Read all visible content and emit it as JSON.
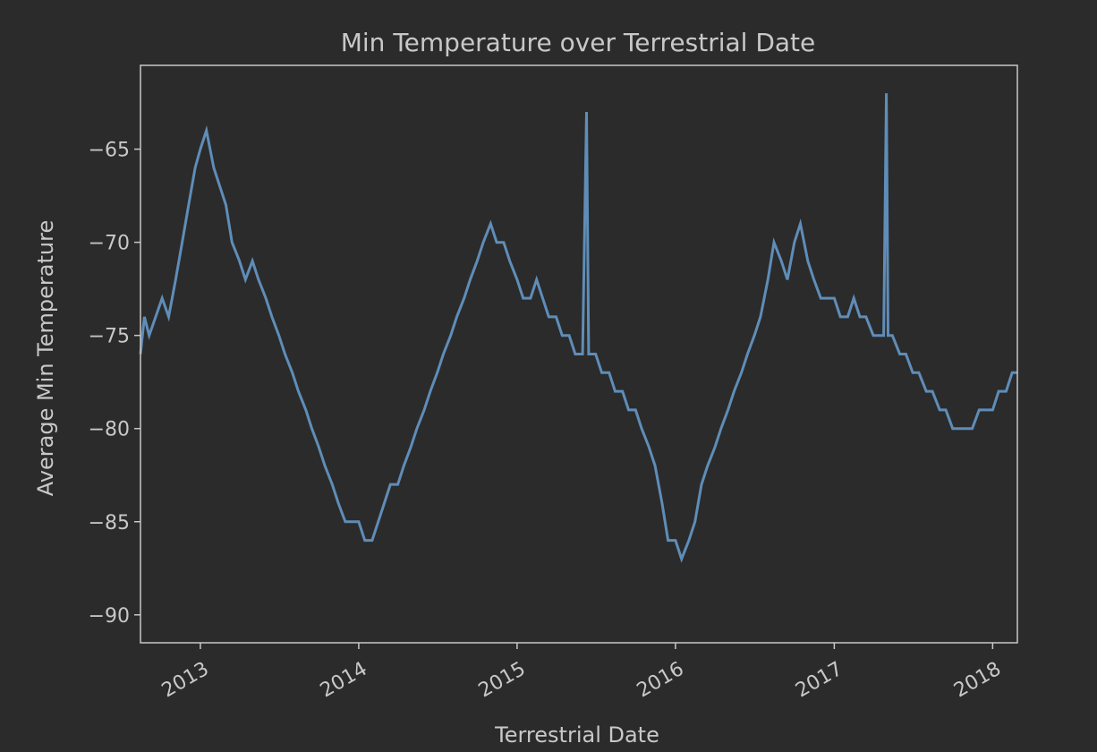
{
  "chart_data": {
    "type": "line",
    "title": "Min Temperature over Terrestrial Date",
    "xlabel": "Terrestrial Date",
    "ylabel": "Average Min Temperature",
    "x_scale": "date",
    "xlim": [
      "2012-08-16",
      "2018-02-27"
    ],
    "ylim": [
      -91.5,
      -60.5
    ],
    "x_ticks": [
      "2013-01-01",
      "2014-01-01",
      "2015-01-01",
      "2016-01-01",
      "2017-01-01",
      "2018-01-01"
    ],
    "x_tick_labels": [
      "2013",
      "2014",
      "2015",
      "2016",
      "2017",
      "2018"
    ],
    "y_ticks": [
      -65,
      -70,
      -75,
      -80,
      -85,
      -90
    ],
    "y_tick_labels": [
      "−65",
      "−70",
      "−75",
      "−80",
      "−85",
      "−90"
    ],
    "grid": false,
    "legend": "none",
    "line_color": "#5f8db8",
    "series": [
      {
        "x": [
          "2012-08-16",
          "2012-08-25",
          "2012-09-05",
          "2012-09-20",
          "2012-10-05",
          "2012-10-20",
          "2012-11-05",
          "2012-11-20",
          "2012-12-05",
          "2012-12-20",
          "2013-01-01",
          "2013-01-15",
          "2013-02-01",
          "2013-02-15",
          "2013-03-01",
          "2013-03-15",
          "2013-04-01",
          "2013-04-15",
          "2013-05-01",
          "2013-05-15",
          "2013-06-01",
          "2013-06-15",
          "2013-07-01",
          "2013-07-15",
          "2013-08-01",
          "2013-08-15",
          "2013-09-01",
          "2013-09-15",
          "2013-10-01",
          "2013-10-15",
          "2013-11-01",
          "2013-11-15",
          "2013-12-01",
          "2013-12-15",
          "2014-01-01",
          "2014-01-15",
          "2014-02-01",
          "2014-02-15",
          "2014-03-01",
          "2014-03-15",
          "2014-04-01",
          "2014-04-15",
          "2014-05-01",
          "2014-05-15",
          "2014-06-01",
          "2014-06-15",
          "2014-07-01",
          "2014-07-15",
          "2014-08-01",
          "2014-08-15",
          "2014-09-01",
          "2014-09-15",
          "2014-10-01",
          "2014-10-15",
          "2014-11-01",
          "2014-11-15",
          "2014-12-01",
          "2014-12-15",
          "2015-01-01",
          "2015-01-15",
          "2015-02-01",
          "2015-02-15",
          "2015-03-01",
          "2015-03-15",
          "2015-04-01",
          "2015-04-15",
          "2015-05-01",
          "2015-05-15",
          "2015-06-01",
          "2015-06-10",
          "2015-06-15",
          "2015-06-20",
          "2015-07-01",
          "2015-07-15",
          "2015-08-01",
          "2015-08-15",
          "2015-09-01",
          "2015-09-15",
          "2015-10-01",
          "2015-10-15",
          "2015-11-01",
          "2015-11-15",
          "2015-12-01",
          "2015-12-15",
          "2016-01-01",
          "2016-01-15",
          "2016-02-01",
          "2016-02-15",
          "2016-03-01",
          "2016-03-15",
          "2016-04-01",
          "2016-04-15",
          "2016-05-01",
          "2016-05-15",
          "2016-06-01",
          "2016-06-15",
          "2016-07-01",
          "2016-07-15",
          "2016-08-01",
          "2016-08-15",
          "2016-09-01",
          "2016-09-15",
          "2016-10-01",
          "2016-10-15",
          "2016-11-01",
          "2016-11-15",
          "2016-12-01",
          "2016-12-15",
          "2017-01-01",
          "2017-01-15",
          "2017-02-01",
          "2017-02-15",
          "2017-03-01",
          "2017-03-15",
          "2017-04-01",
          "2017-04-15",
          "2017-04-25",
          "2017-05-01",
          "2017-05-05",
          "2017-05-15",
          "2017-06-01",
          "2017-06-15",
          "2017-07-01",
          "2017-07-15",
          "2017-08-01",
          "2017-08-15",
          "2017-09-01",
          "2017-09-15",
          "2017-10-01",
          "2017-10-15",
          "2017-11-01",
          "2017-11-15",
          "2017-12-01",
          "2017-12-15",
          "2018-01-01",
          "2018-01-15",
          "2018-02-01",
          "2018-02-15",
          "2018-02-27"
        ],
        "y": [
          -76,
          -74,
          -75,
          -74,
          -73,
          -74,
          -72,
          -70,
          -68,
          -66,
          -65,
          -64,
          -66,
          -67,
          -68,
          -70,
          -71,
          -72,
          -71,
          -72,
          -73,
          -74,
          -75,
          -76,
          -77,
          -78,
          -79,
          -80,
          -81,
          -82,
          -83,
          -84,
          -85,
          -85,
          -85,
          -86,
          -86,
          -85,
          -84,
          -83,
          -83,
          -82,
          -81,
          -80,
          -79,
          -78,
          -77,
          -76,
          -75,
          -74,
          -73,
          -72,
          -71,
          -70,
          -69,
          -70,
          -70,
          -71,
          -72,
          -73,
          -73,
          -72,
          -73,
          -74,
          -74,
          -75,
          -75,
          -76,
          -76,
          -63,
          -76,
          -76,
          -76,
          -77,
          -77,
          -78,
          -78,
          -79,
          -79,
          -80,
          -81,
          -82,
          -84,
          -86,
          -86,
          -87,
          -86,
          -85,
          -83,
          -82,
          -81,
          -80,
          -79,
          -78,
          -77,
          -76,
          -75,
          -74,
          -72,
          -70,
          -71,
          -72,
          -70,
          -69,
          -71,
          -72,
          -73,
          -73,
          -73,
          -74,
          -74,
          -73,
          -74,
          -74,
          -75,
          -75,
          -75,
          -62,
          -75,
          -75,
          -76,
          -76,
          -77,
          -77,
          -78,
          -78,
          -79,
          -79,
          -80,
          -80,
          -80,
          -80,
          -79,
          -79,
          -79,
          -78,
          -78,
          -77,
          -77
        ]
      }
    ]
  }
}
